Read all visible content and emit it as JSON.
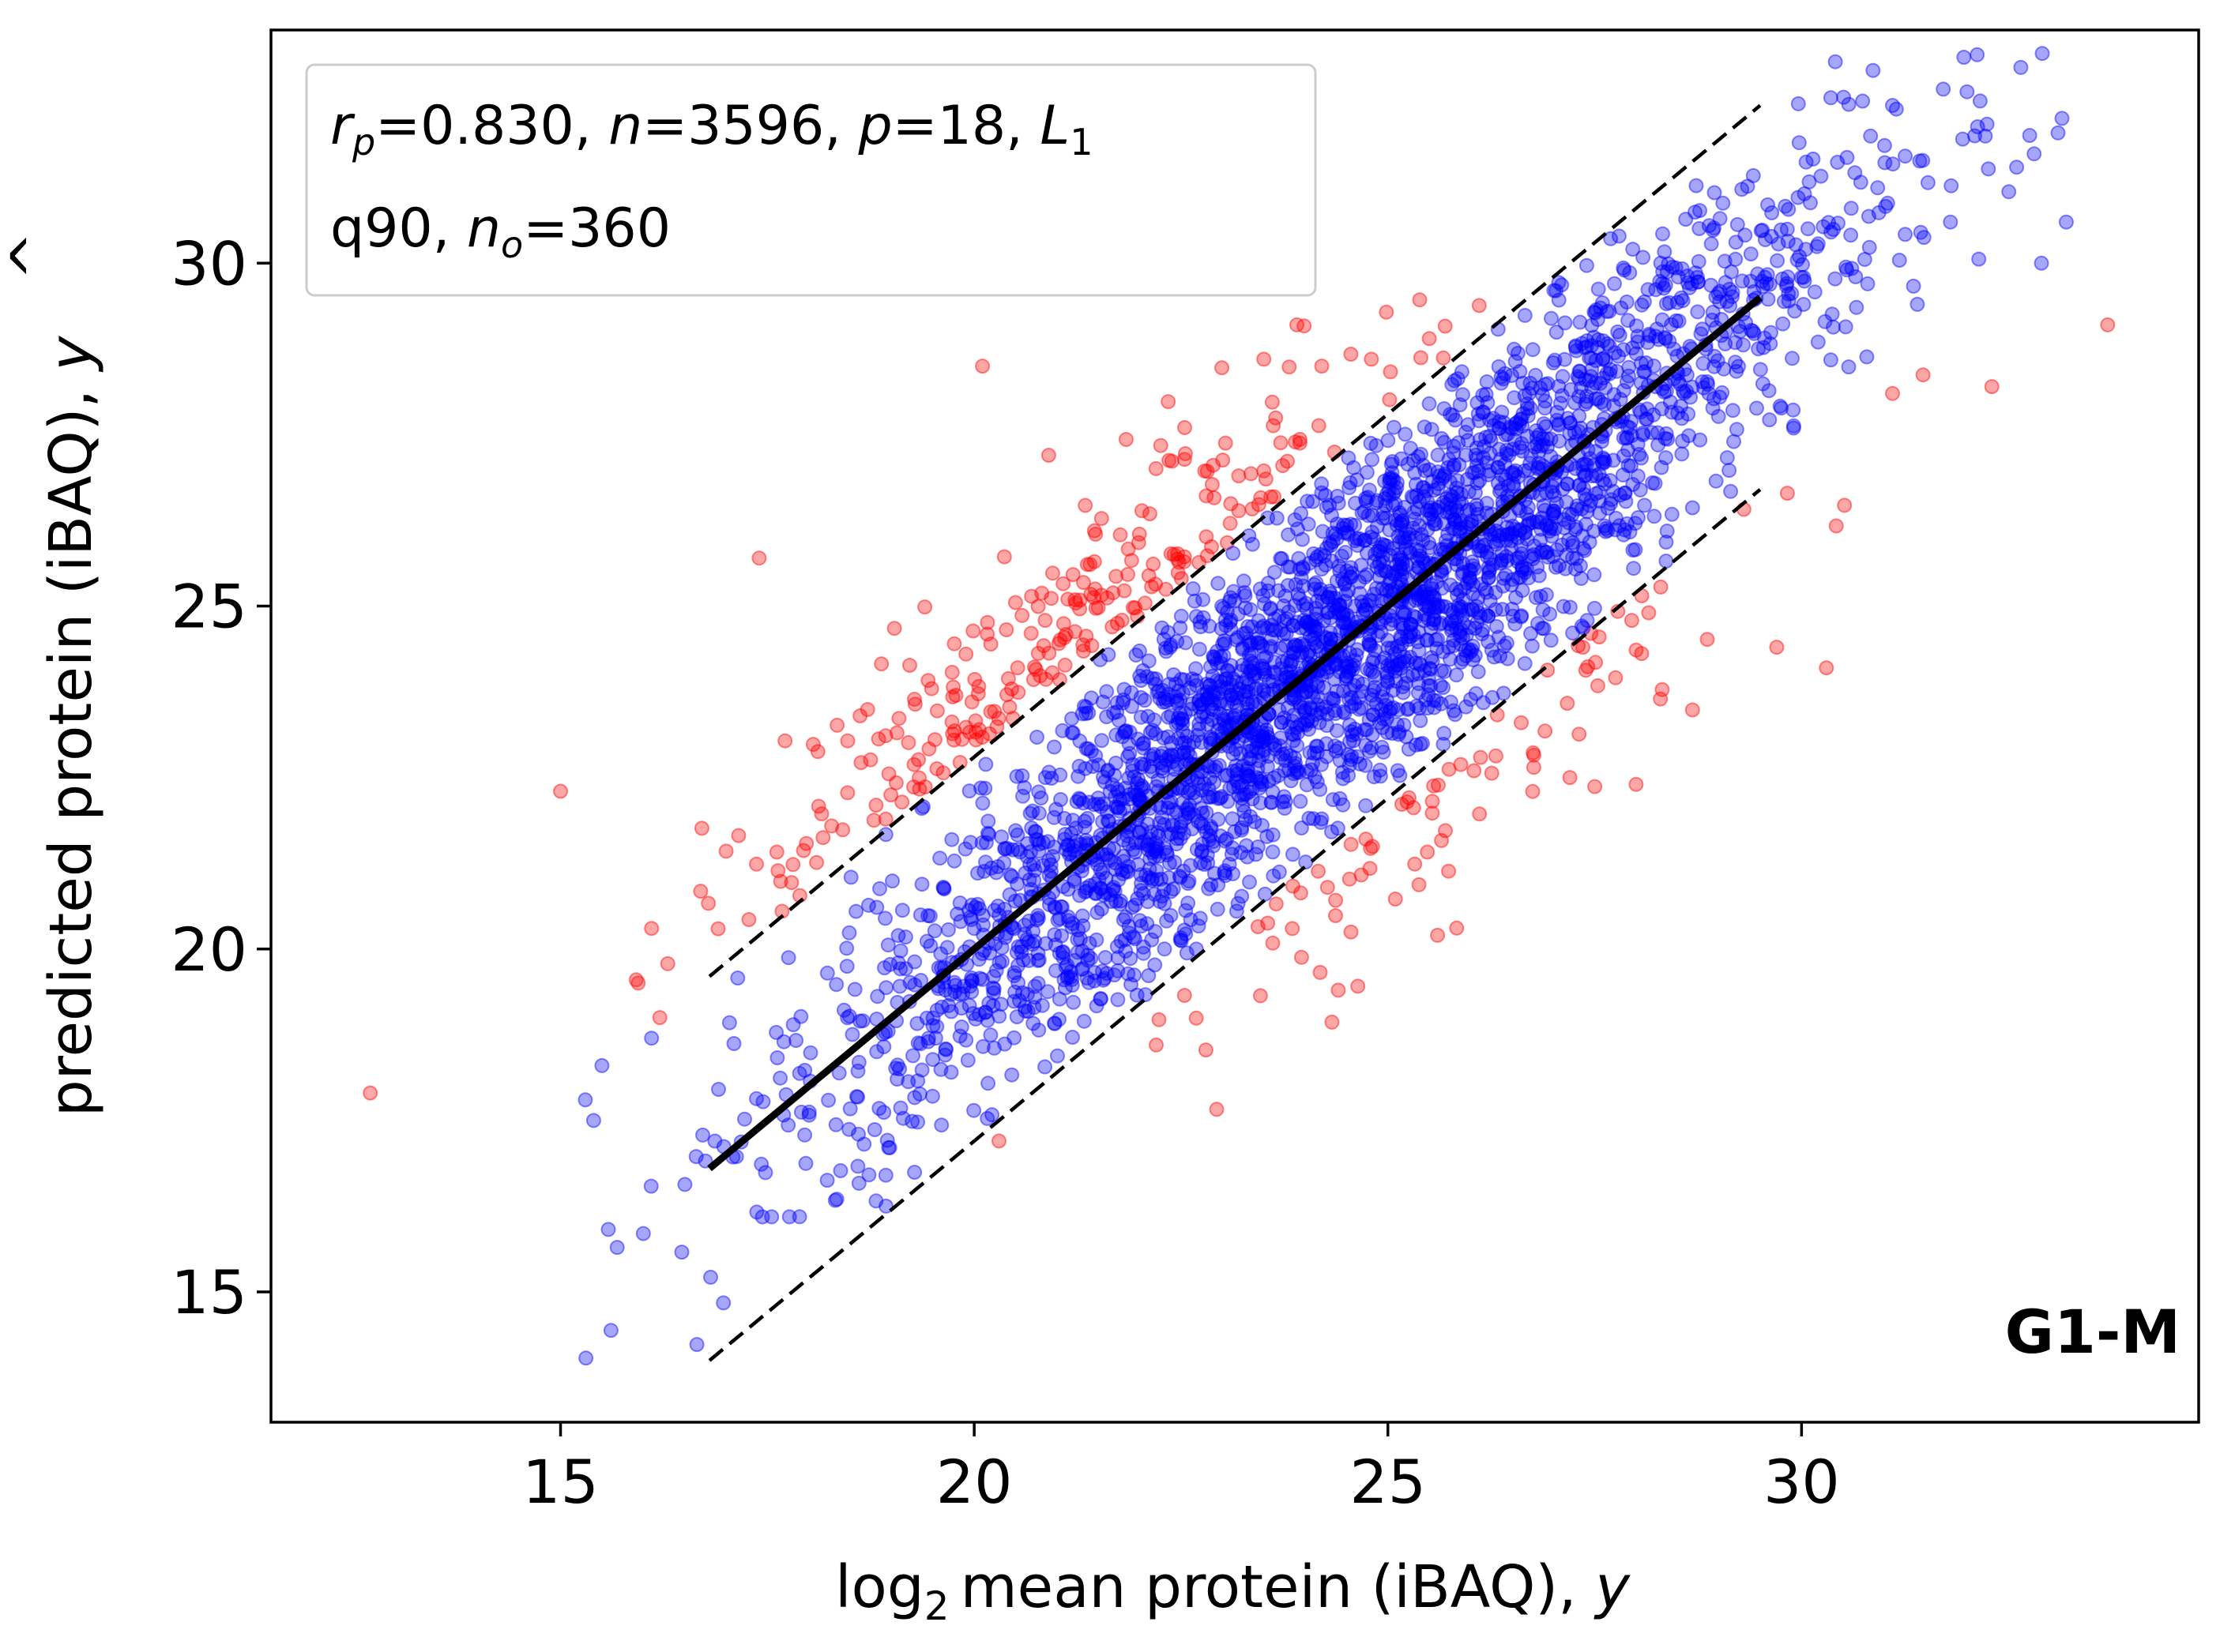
{
  "chart_data": {
    "type": "scatter",
    "xlabel": {
      "main": "mean protein (iBAQ), ",
      "log_prefix": "log",
      "log_base": "2",
      "var": "y"
    },
    "ylabel": {
      "main": "predicted protein (iBAQ), ",
      "var": "y",
      "accent": "^"
    },
    "xlim": [
      11.5,
      34.8
    ],
    "ylim": [
      13.1,
      33.4
    ],
    "xticks": [
      15,
      20,
      25,
      30
    ],
    "yticks": [
      15,
      20,
      25,
      30
    ],
    "grid": false,
    "annotation": {
      "placement": "top-left",
      "line1": {
        "rp_symbol": "r",
        "rp_sub": "p",
        "rp_val": "=0.830, ",
        "n_sym": "n",
        "n_val": "=3596, ",
        "p_sym": "p",
        "p_val": "=18, ",
        "l_sym": "L",
        "l_sub": "1"
      },
      "line2": {
        "q": "q90, ",
        "no_sym": "n",
        "no_sub": "o",
        "no_val": "=360"
      }
    },
    "panel_label": "G1-M",
    "fit_line": {
      "x": [
        16.8,
        29.5
      ],
      "y": [
        16.8,
        29.5
      ],
      "color": "#000000"
    },
    "band_lines": [
      {
        "x": [
          16.8,
          29.5
        ],
        "y": [
          19.6,
          32.3
        ],
        "color": "#000000"
      },
      {
        "x": [
          16.8,
          29.5
        ],
        "y": [
          14.0,
          26.7
        ],
        "color": "#000000"
      }
    ],
    "series": [
      {
        "color": "#0000ff",
        "opacity": 0.35,
        "count": 3236,
        "x_range": [
          15.2,
          33.2
        ]
      },
      {
        "color": "#ff0000",
        "opacity": 0.35,
        "count": 360,
        "x_range": [
          12.7,
          33.7
        ]
      }
    ],
    "outlier_points": [
      {
        "x": 12.7,
        "y": 17.9
      },
      {
        "x": 15.0,
        "y": 22.3
      },
      {
        "x": 16.1,
        "y": 20.3
      },
      {
        "x": 16.2,
        "y": 19.0
      },
      {
        "x": 17.4,
        "y": 25.7
      },
      {
        "x": 20.1,
        "y": 28.5
      },
      {
        "x": 20.9,
        "y": 27.2
      },
      {
        "x": 23.5,
        "y": 28.6
      },
      {
        "x": 23.9,
        "y": 29.1
      },
      {
        "x": 24.2,
        "y": 28.5
      },
      {
        "x": 24.8,
        "y": 28.6
      },
      {
        "x": 25.5,
        "y": 28.9
      },
      {
        "x": 30.3,
        "y": 24.1
      },
      {
        "x": 31.1,
        "y": 28.1
      },
      {
        "x": 32.3,
        "y": 28.2
      },
      {
        "x": 33.7,
        "y": 29.1
      },
      {
        "x": 24.4,
        "y": 19.4
      },
      {
        "x": 22.2,
        "y": 18.6
      },
      {
        "x": 20.3,
        "y": 17.2
      },
      {
        "x": 29.7,
        "y": 24.4
      },
      {
        "x": 25.6,
        "y": 20.2
      },
      {
        "x": 27.2,
        "y": 22.5
      },
      {
        "x": 28.0,
        "y": 22.4
      },
      {
        "x": 19.9,
        "y": 24.3
      }
    ],
    "inlier_points": [
      {
        "x": 32.0,
        "y": 32.5
      },
      {
        "x": 31.1,
        "y": 32.3
      },
      {
        "x": 32.6,
        "y": 31.4
      },
      {
        "x": 33.1,
        "y": 31.9
      },
      {
        "x": 31.8,
        "y": 30.6
      },
      {
        "x": 32.9,
        "y": 30.0
      },
      {
        "x": 33.2,
        "y": 30.6
      },
      {
        "x": 15.4,
        "y": 17.5
      },
      {
        "x": 15.3,
        "y": 17.8
      },
      {
        "x": 15.5,
        "y": 18.3
      },
      {
        "x": 16.1,
        "y": 18.7
      },
      {
        "x": 18.6,
        "y": 17.3
      },
      {
        "x": 31.4,
        "y": 29.4
      },
      {
        "x": 30.6,
        "y": 30.8
      }
    ]
  }
}
